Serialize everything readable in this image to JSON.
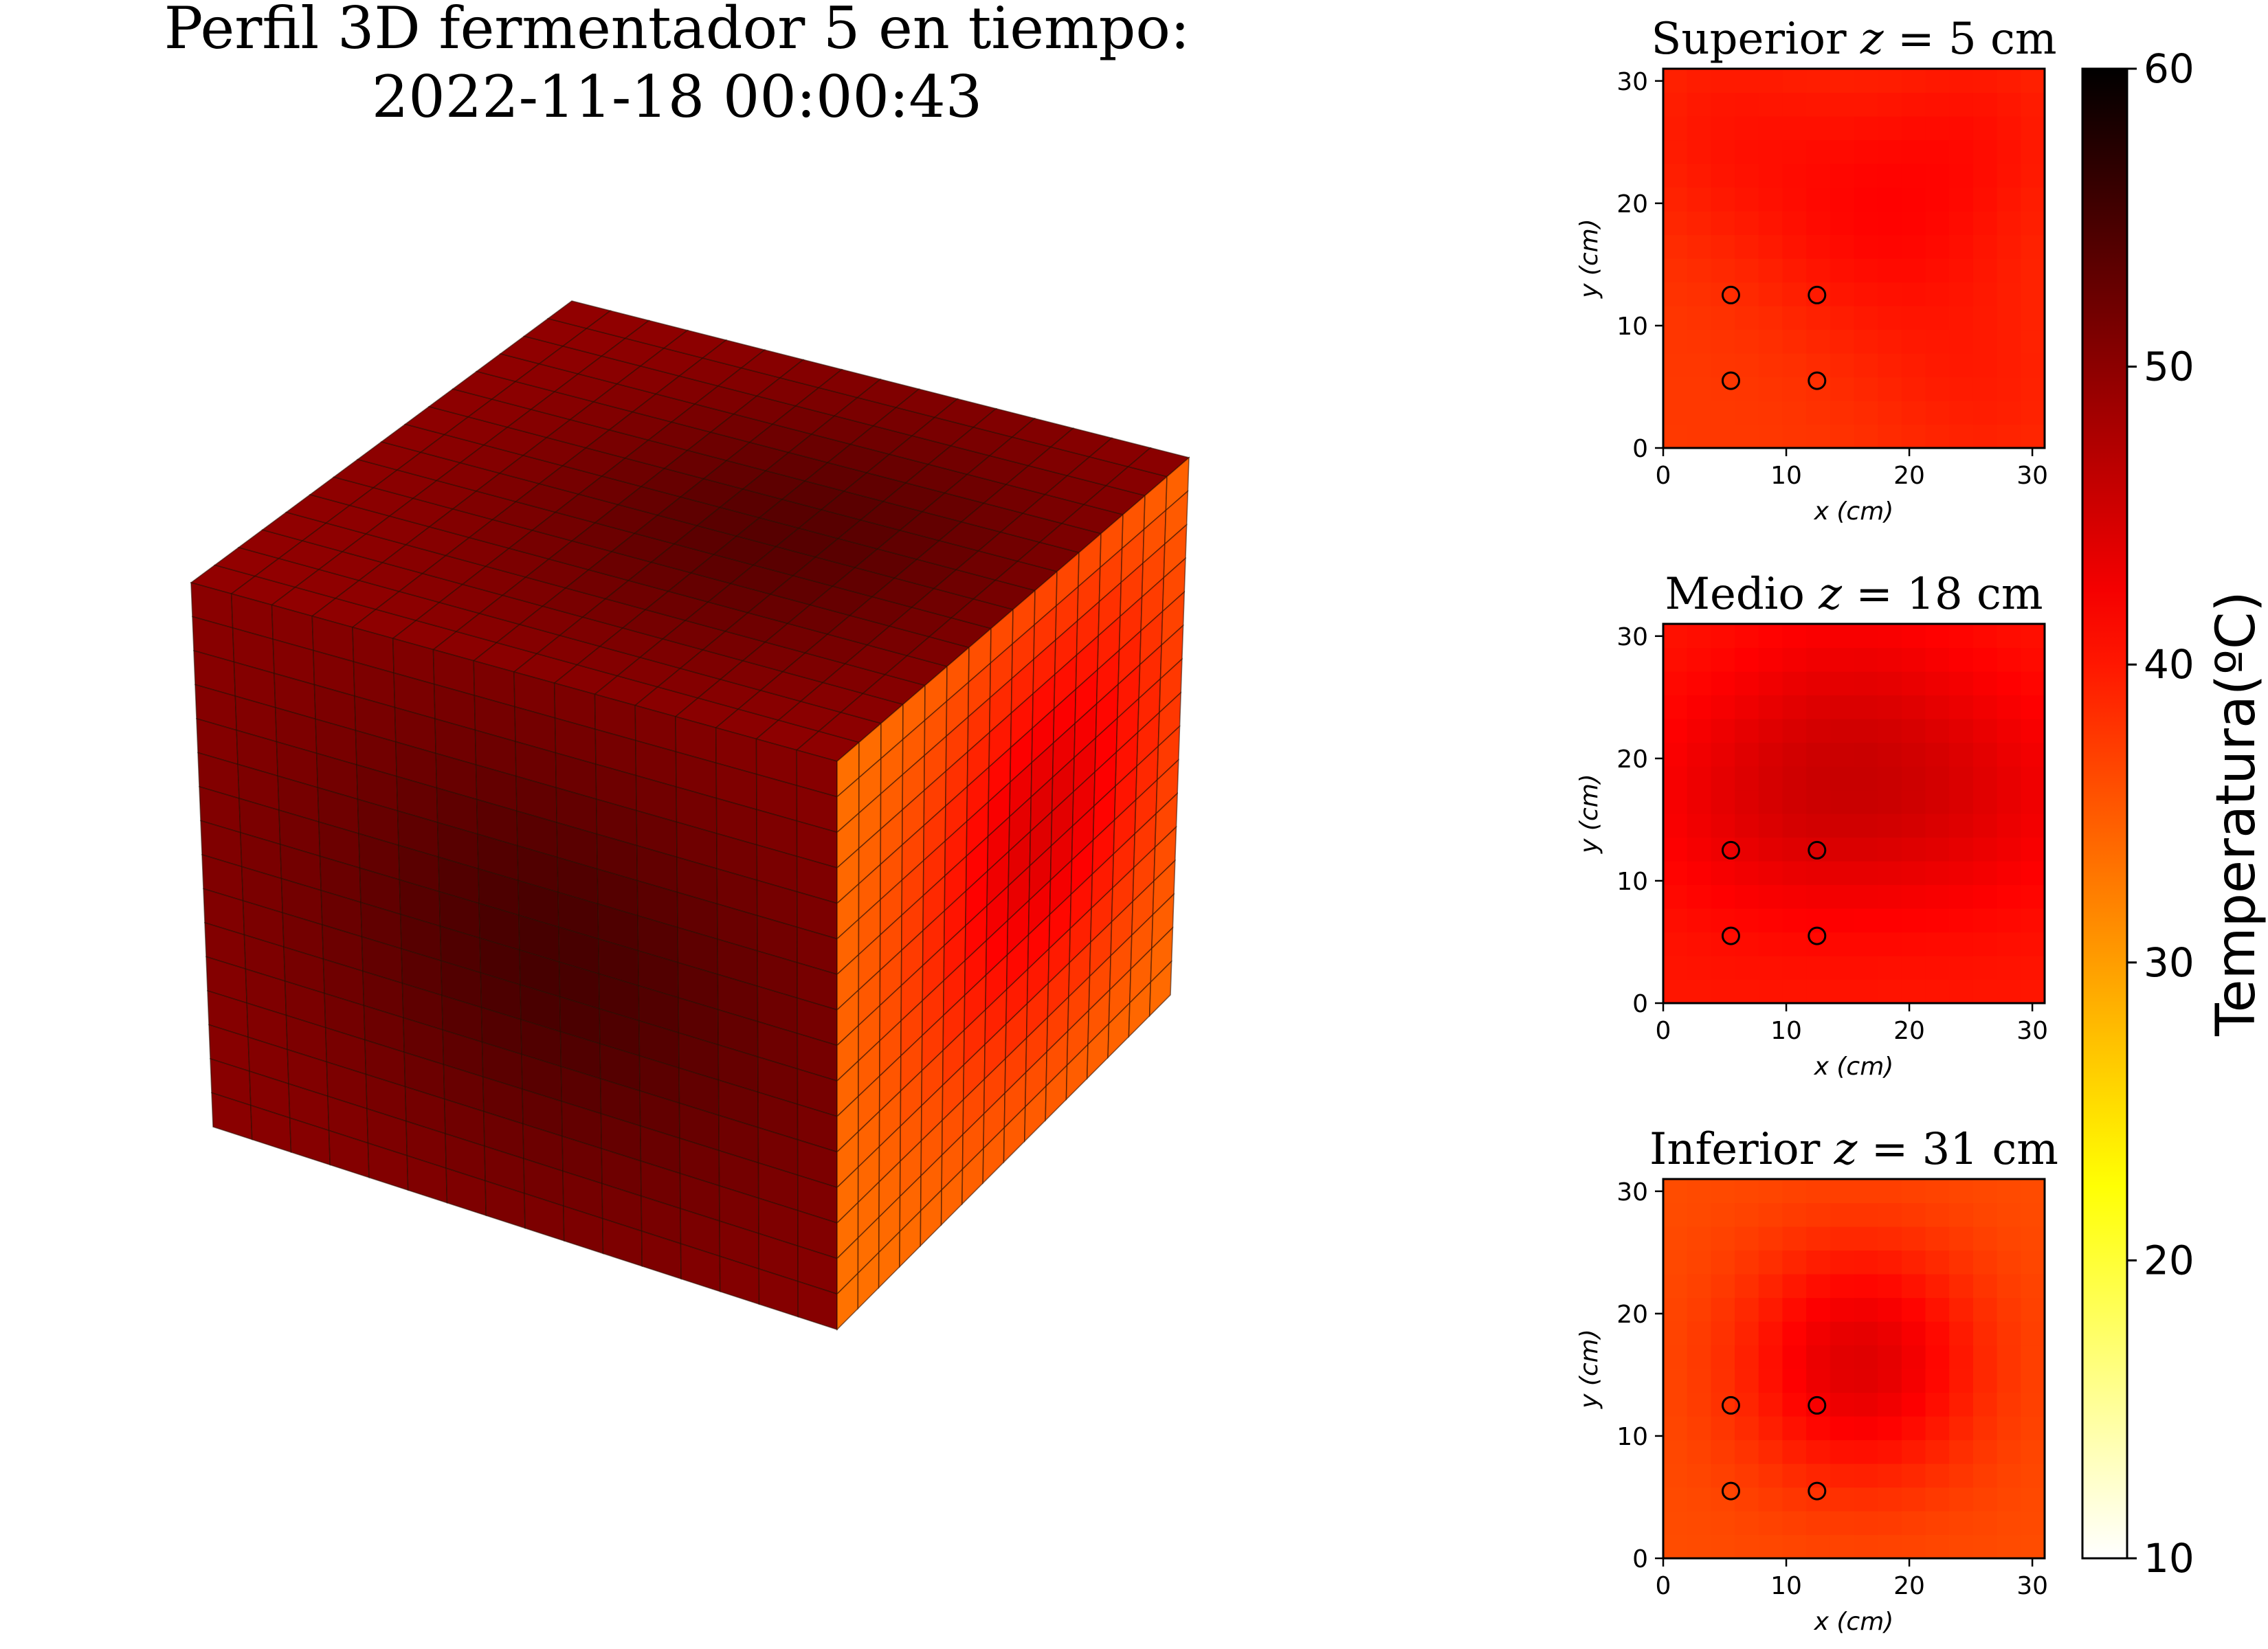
{
  "figure": {
    "title_line1": "Perfil 3D fermentador 5 en tiempo:",
    "title_line2": "2022-11-18 00:00:43"
  },
  "chart_data": {
    "type": "heatmap",
    "colormap": "hot_r",
    "colorbar": {
      "label": "Temperatura(ºC)",
      "min": 10,
      "max": 60,
      "ticks": [
        "10",
        "20",
        "30",
        "40",
        "50",
        "60"
      ]
    },
    "cube": {
      "type": "voxel-surface",
      "grid": 16,
      "top_face_temp_range": [
        43,
        50
      ],
      "front_face_temp_range": [
        42,
        51
      ],
      "side_face_temp_range": [
        33,
        44
      ]
    },
    "panels": [
      {
        "title_prefix": "Superior ",
        "title_var": "z",
        "title_eq": " = 5 cm",
        "xlabel": "x (cm)",
        "ylabel": "y (cm)",
        "xticks": [
          "0",
          "10",
          "20",
          "30"
        ],
        "yticks": [
          "0",
          "10",
          "20",
          "30"
        ],
        "xlim": [
          0,
          31
        ],
        "ylim": [
          0,
          31
        ],
        "grid_size": 16,
        "temp_base": 37.5,
        "temp_peaks": [
          {
            "x": 5,
            "y": 26,
            "dt": 2.5
          },
          {
            "x": 26,
            "y": 26,
            "dt": 2.5
          },
          {
            "x": 17,
            "y": 18,
            "dt": 3
          },
          {
            "x": 26,
            "y": 5,
            "dt": 2
          }
        ],
        "sensors": [
          [
            5.5,
            5.5
          ],
          [
            12.5,
            5.5
          ],
          [
            5.5,
            12.5
          ],
          [
            12.5,
            12.5
          ]
        ]
      },
      {
        "title_prefix": "Medio ",
        "title_var": "z",
        "title_eq": " = 18 cm",
        "xlabel": "x (cm)",
        "ylabel": "y (cm)",
        "xticks": [
          "0",
          "10",
          "20",
          "30"
        ],
        "yticks": [
          "0",
          "10",
          "20",
          "30"
        ],
        "xlim": [
          0,
          31
        ],
        "ylim": [
          0,
          31
        ],
        "grid_size": 16,
        "temp_base": 40,
        "temp_peaks": [
          {
            "x": 16,
            "y": 17,
            "dt": 3.5
          },
          {
            "x": 6,
            "y": 17,
            "dt": 2.5
          },
          {
            "x": 27,
            "y": 17,
            "dt": 2.5
          },
          {
            "x": 16,
            "y": 27,
            "dt": 1.5
          }
        ],
        "sensors": [
          [
            5.5,
            5.5
          ],
          [
            12.5,
            5.5
          ],
          [
            5.5,
            12.5
          ],
          [
            12.5,
            12.5
          ]
        ]
      },
      {
        "title_prefix": "Inferior ",
        "title_var": "z",
        "title_eq": " = 31 cm",
        "xlabel": "x (cm)",
        "ylabel": "y (cm)",
        "xticks": [
          "0",
          "10",
          "20",
          "30"
        ],
        "yticks": [
          "0",
          "10",
          "20",
          "30"
        ],
        "xlim": [
          0,
          31
        ],
        "ylim": [
          0,
          31
        ],
        "grid_size": 16,
        "temp_base": 36,
        "temp_peaks": [
          {
            "x": 16,
            "y": 16,
            "dt": 8
          }
        ],
        "sensors": [
          [
            5.5,
            5.5
          ],
          [
            12.5,
            5.5
          ],
          [
            5.5,
            12.5
          ],
          [
            12.5,
            12.5
          ]
        ]
      }
    ]
  }
}
